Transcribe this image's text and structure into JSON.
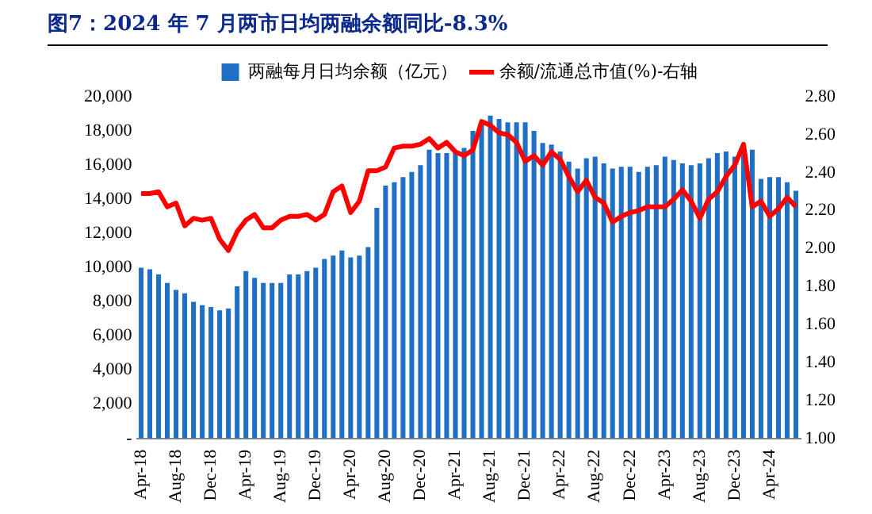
{
  "chart_data": {
    "type": "bar",
    "title": "图7：2024 年 7 月两市日均两融余额同比-8.3%",
    "categories": [
      "Apr-18",
      null,
      null,
      null,
      "Aug-18",
      null,
      null,
      null,
      "Dec-18",
      null,
      null,
      null,
      "Apr-19",
      null,
      null,
      null,
      "Aug-19",
      null,
      null,
      null,
      "Dec-19",
      null,
      null,
      null,
      "Apr-20",
      null,
      null,
      null,
      "Aug-20",
      null,
      null,
      null,
      "Dec-20",
      null,
      null,
      null,
      "Apr-21",
      null,
      null,
      null,
      "Aug-21",
      null,
      null,
      null,
      "Dec-21",
      null,
      null,
      null,
      "Apr-22",
      null,
      null,
      null,
      "Aug-22",
      null,
      null,
      null,
      "Dec-22",
      null,
      null,
      null,
      "Apr-23",
      null,
      null,
      null,
      "Aug-23",
      null,
      null,
      null,
      "Dec-23",
      null,
      null,
      null,
      "Apr-24",
      null,
      null,
      null
    ],
    "series": [
      {
        "name": "两融每月日均余额（亿元）",
        "color": "#1f6fc5",
        "values": [
          10000,
          9900,
          9600,
          9100,
          8700,
          8500,
          8000,
          7800,
          7700,
          7500,
          7600,
          8900,
          9800,
          9400,
          9100,
          9100,
          9100,
          9600,
          9600,
          9800,
          10000,
          10500,
          10700,
          11000,
          10600,
          10700,
          11200,
          13500,
          14800,
          15000,
          15300,
          15600,
          16000,
          16900,
          16700,
          16700,
          16800,
          17000,
          18000,
          18500,
          18900,
          18700,
          18500,
          18500,
          18500,
          18000,
          17300,
          17200,
          16800,
          16200,
          15800,
          16400,
          16500,
          16100,
          15800,
          15900,
          15900,
          15600,
          15900,
          16000,
          16500,
          16300,
          16100,
          16000,
          16100,
          16400,
          16700,
          16800,
          16500,
          16700,
          16900,
          15200,
          15300,
          15300,
          15000,
          14500
        ]
      },
      {
        "name": "余额/流通总市值(%)-右轴",
        "type": "line",
        "axis": "y2",
        "color": "#ff0000",
        "values": [
          2.29,
          2.29,
          2.3,
          2.22,
          2.24,
          2.12,
          2.16,
          2.15,
          2.16,
          2.05,
          1.99,
          2.09,
          2.15,
          2.18,
          2.11,
          2.11,
          2.15,
          2.17,
          2.17,
          2.18,
          2.15,
          2.18,
          2.3,
          2.33,
          2.19,
          2.25,
          2.41,
          2.41,
          2.43,
          2.53,
          2.54,
          2.54,
          2.55,
          2.58,
          2.53,
          2.56,
          2.51,
          2.49,
          2.52,
          2.67,
          2.65,
          2.61,
          2.6,
          2.56,
          2.46,
          2.49,
          2.44,
          2.51,
          2.47,
          2.38,
          2.3,
          2.36,
          2.27,
          2.24,
          2.14,
          2.17,
          2.19,
          2.2,
          2.22,
          2.22,
          2.22,
          2.26,
          2.31,
          2.25,
          2.16,
          2.26,
          2.3,
          2.38,
          2.44,
          2.55,
          2.22,
          2.25,
          2.17,
          2.21,
          2.27,
          2.22
        ]
      }
    ],
    "ylim": [
      0,
      20000
    ],
    "yticks": [
      {
        "value": 0,
        "label": "-"
      },
      {
        "value": 2000,
        "label": "2,000"
      },
      {
        "value": 4000,
        "label": "4,000"
      },
      {
        "value": 6000,
        "label": "6,000"
      },
      {
        "value": 8000,
        "label": "8,000"
      },
      {
        "value": 10000,
        "label": "10,000"
      },
      {
        "value": 12000,
        "label": "12,000"
      },
      {
        "value": 14000,
        "label": "14,000"
      },
      {
        "value": 16000,
        "label": "16,000"
      },
      {
        "value": 18000,
        "label": "18,000"
      },
      {
        "value": 20000,
        "label": "20,000"
      }
    ],
    "y2lim": [
      1.0,
      2.8
    ],
    "y2ticks": [
      {
        "value": 1.0,
        "label": "1.00"
      },
      {
        "value": 1.2,
        "label": "1.20"
      },
      {
        "value": 1.4,
        "label": "1.40"
      },
      {
        "value": 1.6,
        "label": "1.60"
      },
      {
        "value": 1.8,
        "label": "1.80"
      },
      {
        "value": 2.0,
        "label": "2.00"
      },
      {
        "value": 2.2,
        "label": "2.20"
      },
      {
        "value": 2.4,
        "label": "2.40"
      },
      {
        "value": 2.6,
        "label": "2.60"
      },
      {
        "value": 2.8,
        "label": "2.80"
      }
    ],
    "grid": false,
    "legend": "top",
    "marker": "none",
    "line_style": "solid"
  }
}
